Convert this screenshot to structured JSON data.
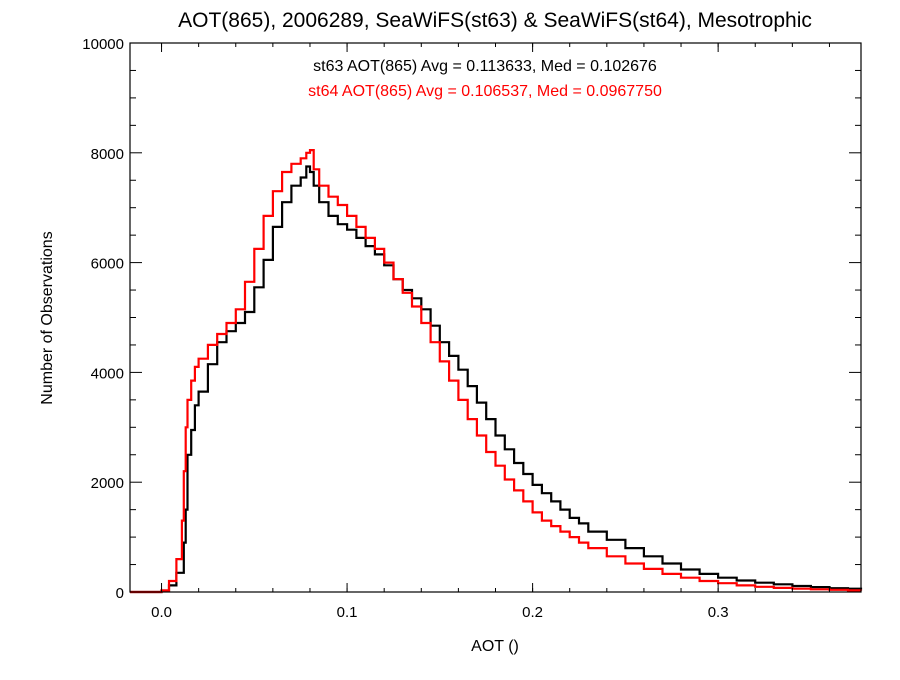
{
  "chart_data": {
    "type": "line",
    "title": "AOT(865), 2006289, SeaWiFS(st63) & SeaWiFS(st64), Mesotrophic",
    "xlabel": "AOT ()",
    "ylabel": "Number of Observations",
    "xlim": [
      -0.017,
      0.377
    ],
    "ylim": [
      0,
      10000
    ],
    "x_ticks": [
      0.0,
      0.1,
      0.2,
      0.3
    ],
    "x_tick_labels": [
      "0.0",
      "0.1",
      "0.2",
      "0.3"
    ],
    "y_ticks": [
      0,
      2000,
      4000,
      6000,
      8000,
      10000
    ],
    "y_tick_labels": [
      "0",
      "2000",
      "4000",
      "6000",
      "8000",
      "10000"
    ],
    "grid": false,
    "step": true,
    "annotations": [
      {
        "text": "st63 AOT(865) Avg = 0.113633, Med = 0.102676",
        "color": "#000000"
      },
      {
        "text": "st64 AOT(865) Avg = 0.106537, Med = 0.0967750",
        "color": "#ff0000"
      }
    ],
    "series": [
      {
        "color": "#000000",
        "x": [
          -0.017,
          -0.01,
          0.0,
          0.004,
          0.008,
          0.012,
          0.013,
          0.014,
          0.016,
          0.018,
          0.02,
          0.025,
          0.03,
          0.035,
          0.04,
          0.045,
          0.05,
          0.055,
          0.06,
          0.065,
          0.07,
          0.075,
          0.078,
          0.08,
          0.082,
          0.085,
          0.09,
          0.095,
          0.1,
          0.105,
          0.11,
          0.115,
          0.12,
          0.125,
          0.13,
          0.135,
          0.14,
          0.145,
          0.15,
          0.155,
          0.16,
          0.165,
          0.17,
          0.175,
          0.18,
          0.185,
          0.19,
          0.195,
          0.2,
          0.205,
          0.21,
          0.215,
          0.22,
          0.225,
          0.23,
          0.24,
          0.25,
          0.26,
          0.27,
          0.28,
          0.29,
          0.3,
          0.31,
          0.32,
          0.33,
          0.34,
          0.35,
          0.36,
          0.37,
          0.377
        ],
        "y": [
          0,
          0,
          20,
          120,
          350,
          900,
          1500,
          2500,
          2950,
          3400,
          3650,
          4150,
          4550,
          4750,
          4900,
          5100,
          5550,
          6050,
          6650,
          7100,
          7400,
          7550,
          7750,
          7650,
          7400,
          7100,
          6850,
          6700,
          6600,
          6450,
          6300,
          6150,
          5950,
          5700,
          5500,
          5350,
          5150,
          4850,
          4550,
          4300,
          4050,
          3750,
          3450,
          3150,
          2850,
          2600,
          2350,
          2150,
          1950,
          1800,
          1650,
          1500,
          1350,
          1250,
          1100,
          950,
          800,
          650,
          520,
          410,
          330,
          260,
          210,
          170,
          140,
          110,
          90,
          70,
          60,
          50
        ]
      },
      {
        "color": "#ff0000",
        "x": [
          -0.017,
          -0.01,
          0.0,
          0.004,
          0.008,
          0.011,
          0.012,
          0.013,
          0.014,
          0.016,
          0.018,
          0.02,
          0.025,
          0.03,
          0.035,
          0.04,
          0.045,
          0.05,
          0.055,
          0.06,
          0.065,
          0.07,
          0.075,
          0.078,
          0.08,
          0.082,
          0.085,
          0.09,
          0.095,
          0.1,
          0.105,
          0.11,
          0.115,
          0.12,
          0.125,
          0.13,
          0.135,
          0.14,
          0.145,
          0.15,
          0.155,
          0.16,
          0.165,
          0.17,
          0.175,
          0.18,
          0.185,
          0.19,
          0.195,
          0.2,
          0.205,
          0.21,
          0.215,
          0.22,
          0.225,
          0.23,
          0.24,
          0.25,
          0.26,
          0.27,
          0.28,
          0.29,
          0.3,
          0.31,
          0.32,
          0.33,
          0.34,
          0.35,
          0.36,
          0.37,
          0.377
        ],
        "y": [
          0,
          0,
          30,
          200,
          600,
          1300,
          2200,
          3000,
          3500,
          3850,
          4100,
          4250,
          4500,
          4700,
          4900,
          5150,
          5650,
          6250,
          6850,
          7300,
          7650,
          7800,
          7900,
          8000,
          8050,
          7700,
          7400,
          7200,
          7050,
          6850,
          6650,
          6450,
          6250,
          6000,
          5700,
          5450,
          5200,
          4900,
          4550,
          4200,
          3850,
          3500,
          3150,
          2850,
          2550,
          2300,
          2050,
          1850,
          1650,
          1450,
          1300,
          1200,
          1100,
          1000,
          900,
          800,
          650,
          520,
          420,
          330,
          260,
          200,
          160,
          120,
          95,
          75,
          60,
          50,
          40,
          30,
          25
        ]
      }
    ]
  }
}
